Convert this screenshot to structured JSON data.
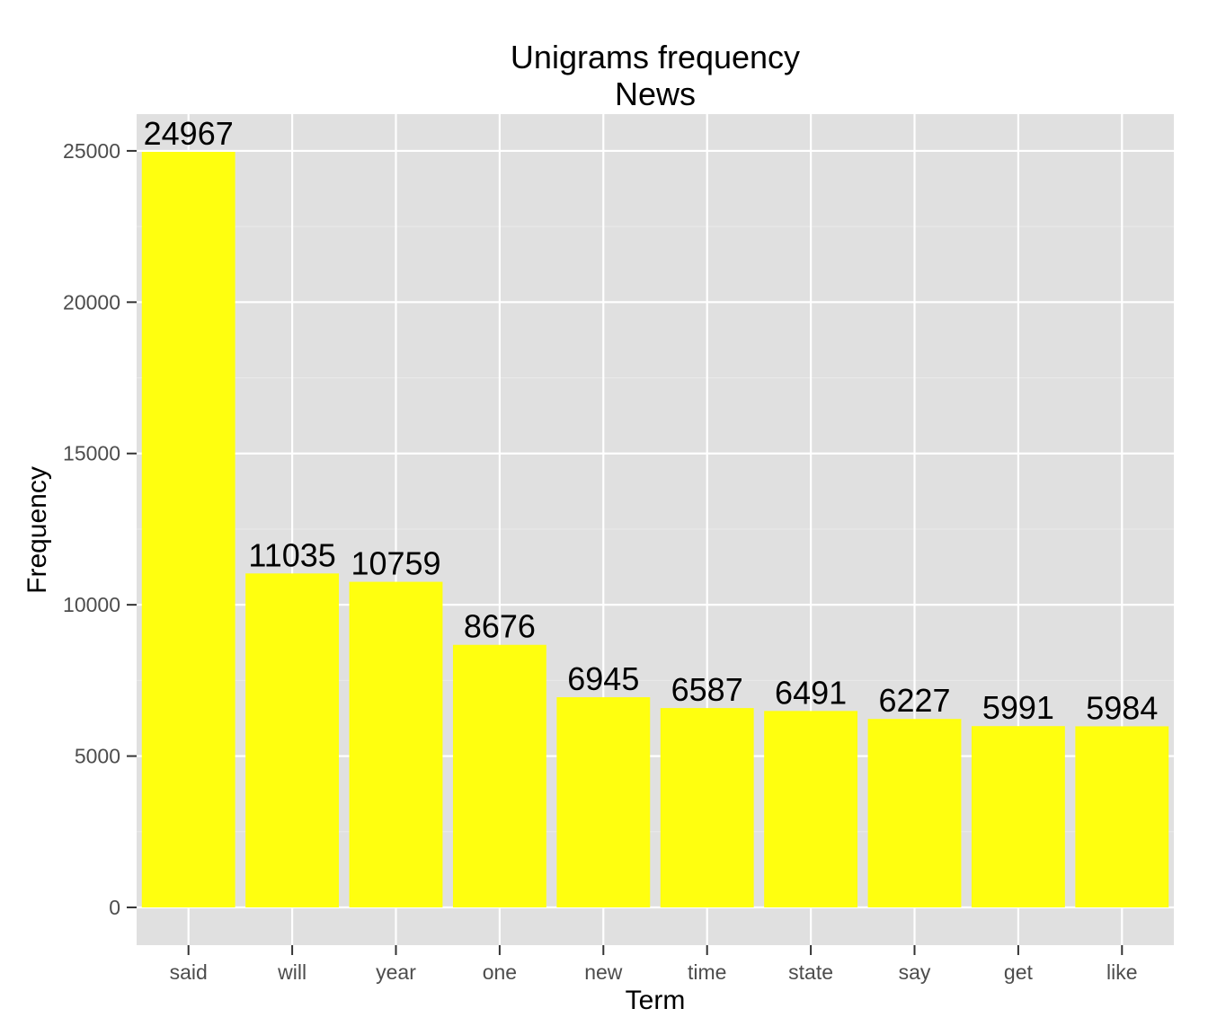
{
  "chart_data": {
    "type": "bar",
    "title": "Unigrams frequency",
    "subtitle": "News",
    "xlabel": "Term",
    "ylabel": "Frequency",
    "categories": [
      "said",
      "will",
      "year",
      "one",
      "new",
      "time",
      "state",
      "say",
      "get",
      "like"
    ],
    "values": [
      24967,
      11035,
      10759,
      8676,
      6945,
      6587,
      6491,
      6227,
      5991,
      5984
    ],
    "data_labels": [
      "24967",
      "11035",
      "10759",
      "8676",
      "6945",
      "6587",
      "6491",
      "6227",
      "5991",
      "5984"
    ],
    "ylim": [
      -1248,
      26215
    ],
    "yticks": [
      0,
      5000,
      10000,
      15000,
      20000,
      25000
    ],
    "ytick_labels": [
      "0",
      "5000",
      "10000",
      "15000",
      "20000",
      "25000"
    ],
    "grid": true,
    "legend": "none"
  },
  "colors": {
    "bar_fill": "#ffff0f",
    "panel_background": "#e0e0e0",
    "major_grid": "#ffffff",
    "minor_grid": "#eaeaea",
    "tick_text": "#4d4d4d",
    "text": "#000000"
  }
}
